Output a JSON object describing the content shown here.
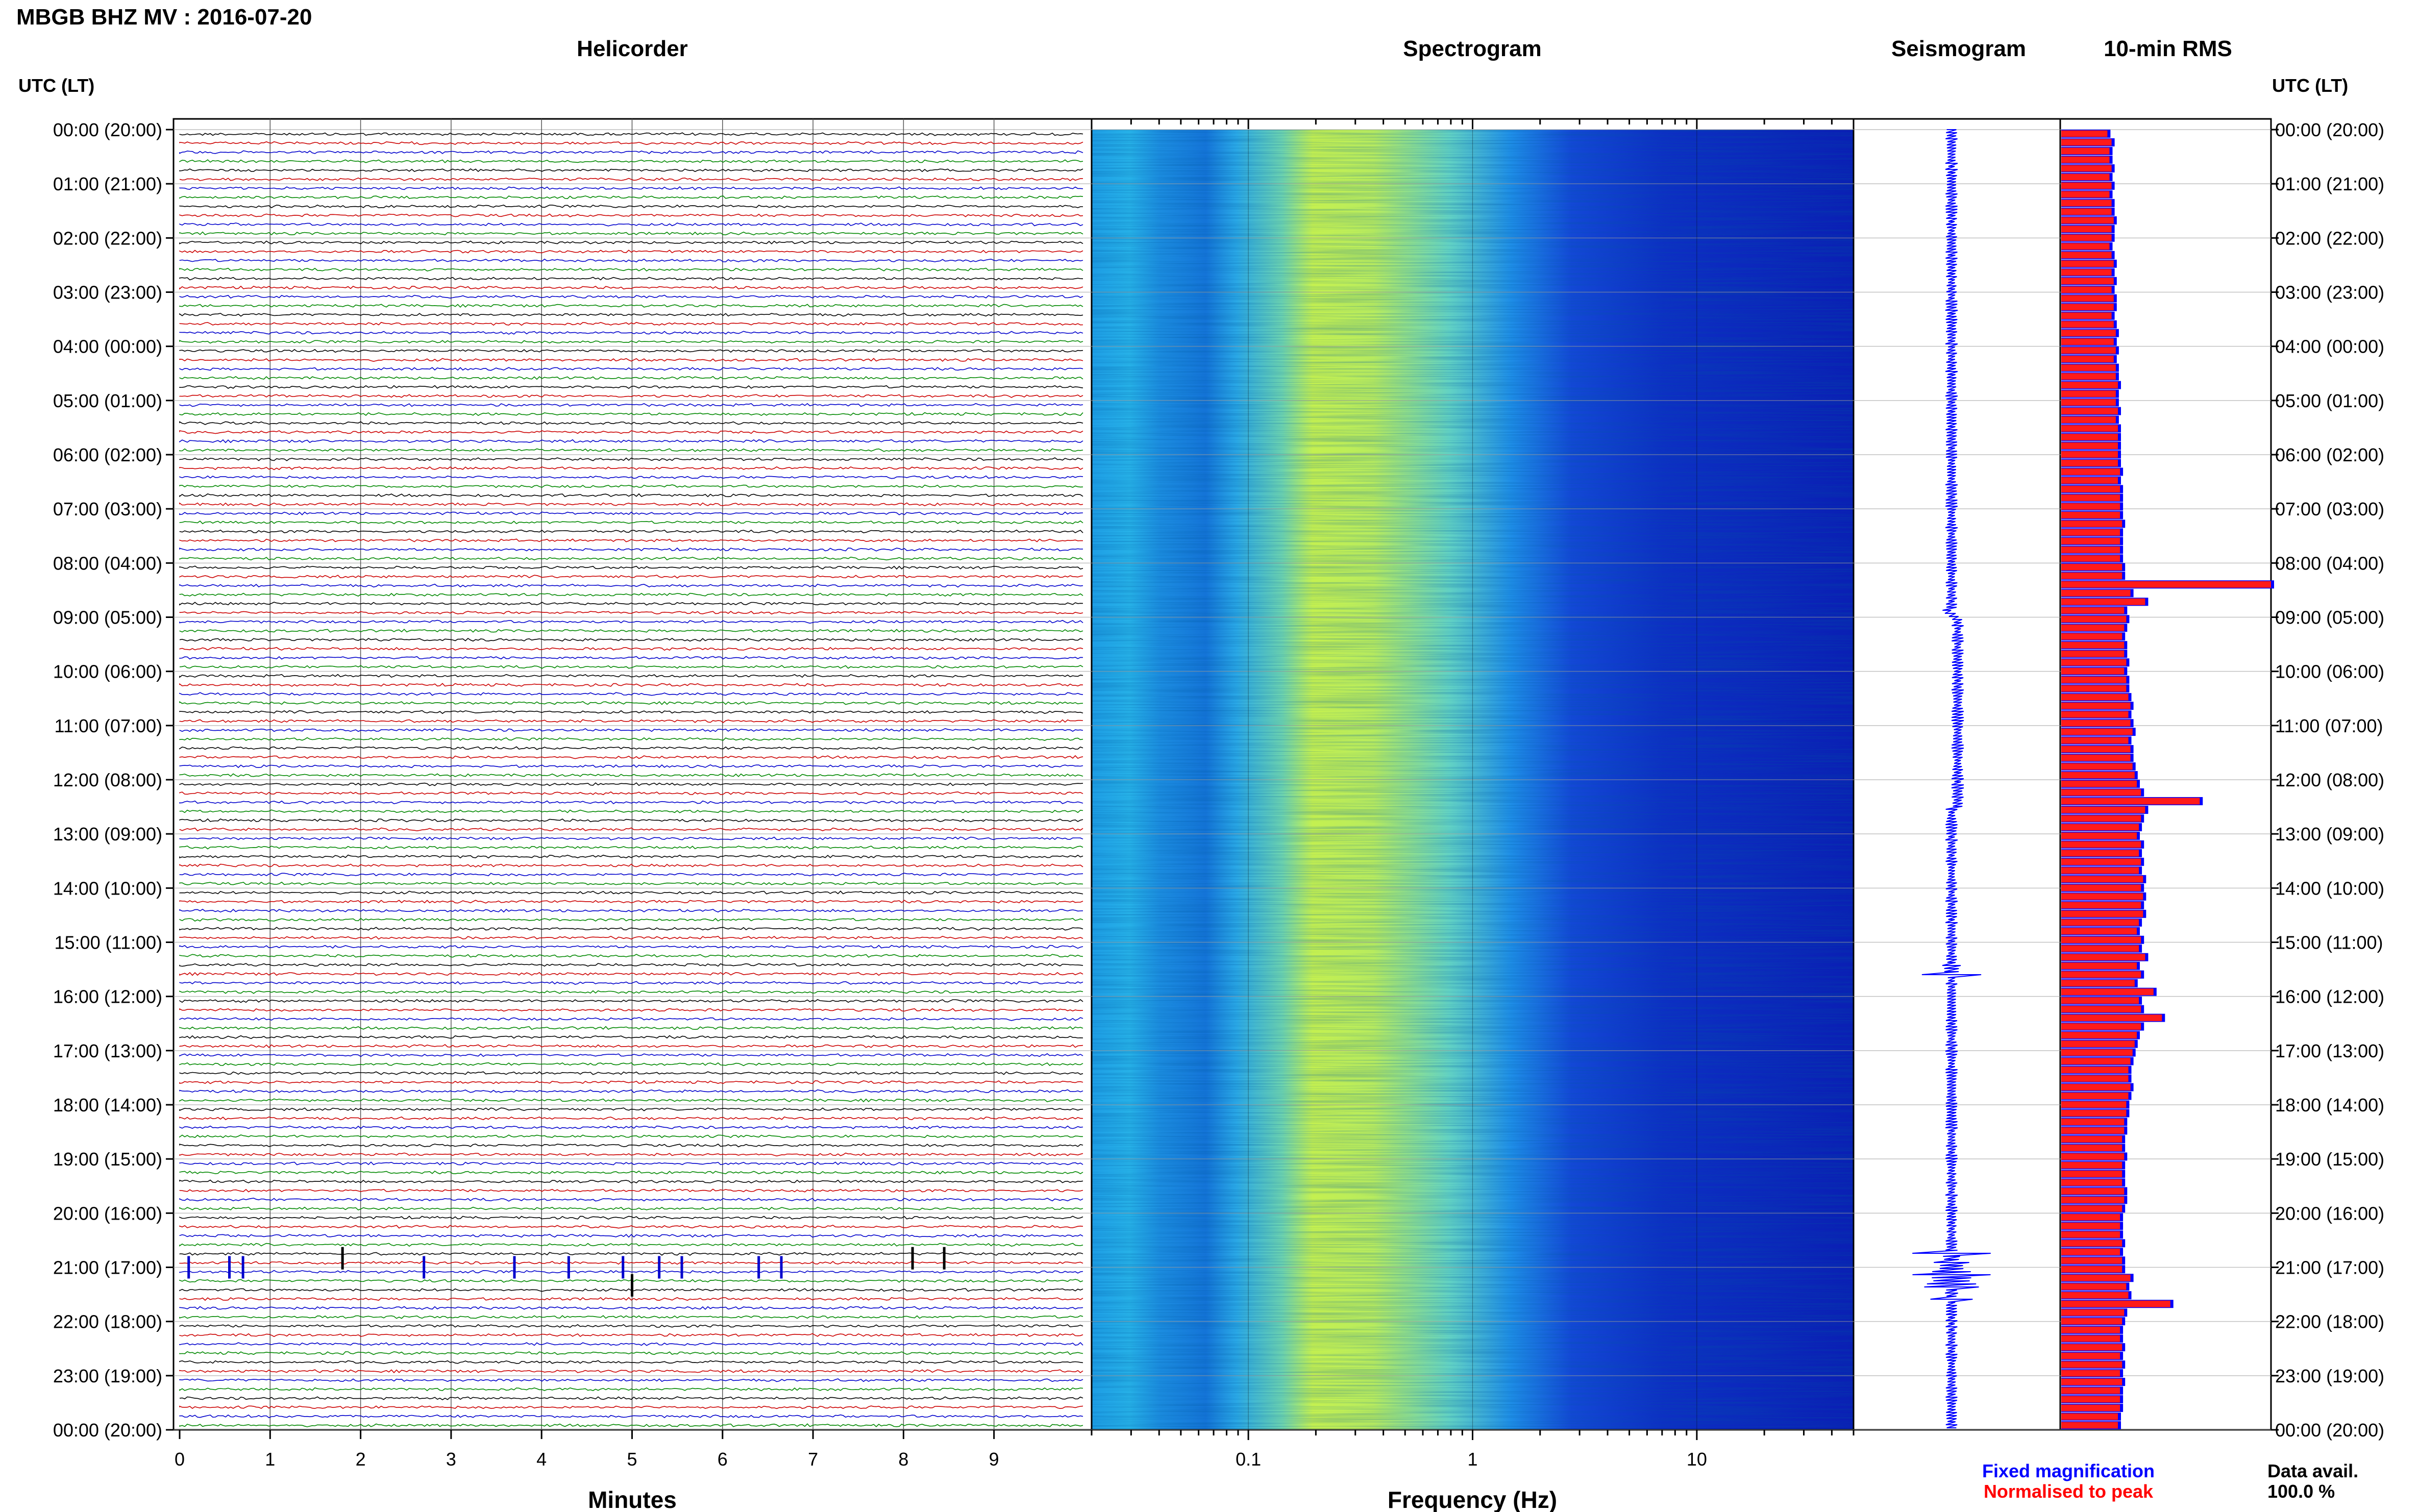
{
  "header": {
    "title": "MBGB BHZ MV : 2016-07-20",
    "left_axis_label": "UTC (LT)",
    "right_axis_label": "UTC (LT)"
  },
  "panels": {
    "helicorder": "Helicorder",
    "spectrogram": "Spectrogram",
    "seismogram": "Seismogram",
    "rms": "10-min RMS"
  },
  "axes": {
    "helicorder_xlabel": "Minutes",
    "spectrogram_xlabel": "Frequency (Hz)"
  },
  "legend": {
    "fixed": "Fixed magnification",
    "normalised": "Normalised to peak",
    "fixed_color": "#0000ff",
    "normalised_color": "#ff0000"
  },
  "data_avail": {
    "label": "Data avail.",
    "value": "100.0 %"
  },
  "colors": {
    "trace_cycle": [
      "#000000",
      "#cc0000",
      "#0000cc",
      "#008800"
    ],
    "rms_fill": "#ff1a1a",
    "rms_edge": "#0000ff"
  },
  "chart_data": {
    "type": "heatmap",
    "time_labels": [
      "00:00 (20:00)",
      "01:00 (21:00)",
      "02:00 (22:00)",
      "03:00 (23:00)",
      "04:00 (00:00)",
      "05:00 (01:00)",
      "06:00 (02:00)",
      "07:00 (03:00)",
      "08:00 (04:00)",
      "09:00 (05:00)",
      "10:00 (06:00)",
      "11:00 (07:00)",
      "12:00 (08:00)",
      "13:00 (09:00)",
      "14:00 (10:00)",
      "15:00 (11:00)",
      "16:00 (12:00)",
      "17:00 (13:00)",
      "18:00 (14:00)",
      "19:00 (15:00)",
      "20:00 (16:00)",
      "21:00 (17:00)",
      "22:00 (18:00)",
      "23:00 (19:00)",
      "00:00 (20:00)"
    ],
    "minute_ticks": [
      "0",
      "1",
      "2",
      "3",
      "4",
      "5",
      "6",
      "7",
      "8",
      "9"
    ],
    "helicorder_xlim": [
      0,
      10
    ],
    "frequency_ticks": [
      "0.1",
      "1",
      "10"
    ],
    "frequency_xlim": [
      0.02,
      50
    ],
    "frequency_log_scale": true,
    "rms_10min": [
      0.22,
      0.24,
      0.23,
      0.23,
      0.24,
      0.23,
      0.24,
      0.23,
      0.24,
      0.24,
      0.25,
      0.24,
      0.24,
      0.23,
      0.24,
      0.25,
      0.24,
      0.25,
      0.24,
      0.25,
      0.25,
      0.24,
      0.25,
      0.26,
      0.25,
      0.26,
      0.25,
      0.26,
      0.26,
      0.27,
      0.26,
      0.26,
      0.27,
      0.26,
      0.27,
      0.27,
      0.27,
      0.27,
      0.27,
      0.28,
      0.27,
      0.28,
      0.28,
      0.28,
      0.28,
      0.29,
      0.28,
      0.28,
      0.28,
      0.28,
      0.29,
      0.29,
      1.0,
      0.33,
      0.4,
      0.3,
      0.31,
      0.3,
      0.29,
      0.3,
      0.3,
      0.31,
      0.3,
      0.31,
      0.31,
      0.32,
      0.33,
      0.32,
      0.33,
      0.34,
      0.32,
      0.33,
      0.33,
      0.34,
      0.35,
      0.36,
      0.38,
      0.66,
      0.4,
      0.38,
      0.37,
      0.36,
      0.38,
      0.37,
      0.38,
      0.37,
      0.39,
      0.38,
      0.39,
      0.38,
      0.39,
      0.37,
      0.36,
      0.38,
      0.37,
      0.4,
      0.36,
      0.38,
      0.35,
      0.44,
      0.37,
      0.38,
      0.48,
      0.38,
      0.36,
      0.35,
      0.34,
      0.33,
      0.32,
      0.32,
      0.33,
      0.32,
      0.31,
      0.31,
      0.3,
      0.3,
      0.29,
      0.29,
      0.3,
      0.29,
      0.29,
      0.29,
      0.3,
      0.3,
      0.29,
      0.28,
      0.28,
      0.28,
      0.29,
      0.28,
      0.29,
      0.29,
      0.33,
      0.31,
      0.32,
      0.52,
      0.3,
      0.29,
      0.28,
      0.28,
      0.29,
      0.28,
      0.29,
      0.28,
      0.29,
      0.28,
      0.28,
      0.28,
      0.27,
      0.27
    ]
  }
}
